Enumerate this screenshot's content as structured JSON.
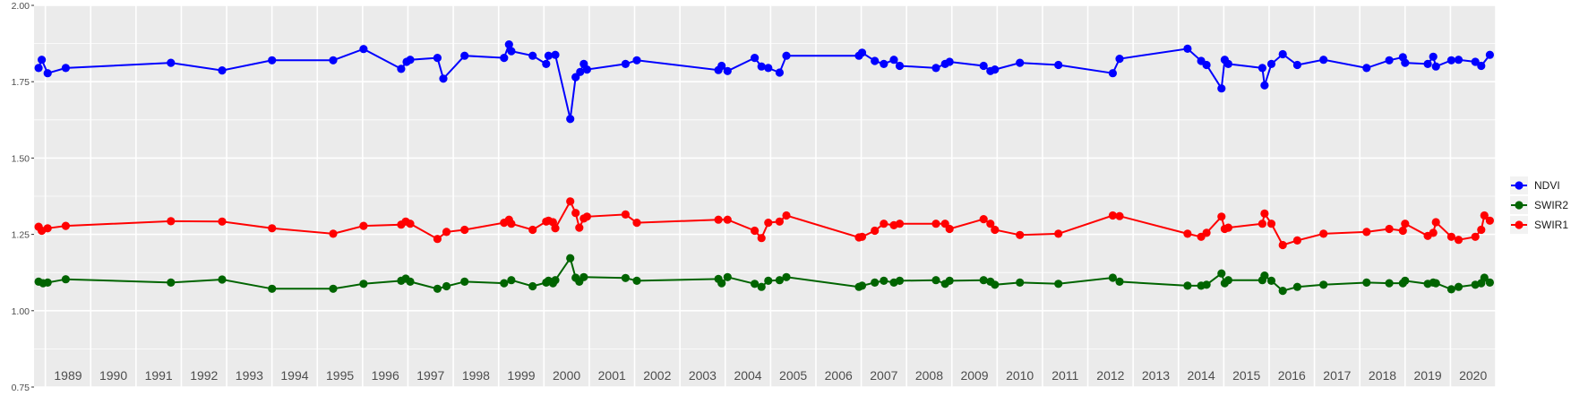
{
  "chart_data": {
    "type": "line",
    "title": "",
    "xlabel": "",
    "ylabel": "",
    "ylim": [
      0.75,
      2.0
    ],
    "xlim": [
      1988.75,
      2021.0
    ],
    "y_ticks": [
      "0.75",
      "1.00",
      "1.25",
      "1.50",
      "1.75",
      "2.00"
    ],
    "x_year_labels": [
      "1989",
      "1990",
      "1991",
      "1992",
      "1993",
      "1994",
      "1995",
      "1996",
      "1997",
      "1998",
      "1999",
      "2000",
      "2001",
      "2002",
      "2003",
      "2004",
      "2005",
      "2006",
      "2007",
      "2008",
      "2009",
      "2010",
      "2011",
      "2012",
      "2013",
      "2014",
      "2015",
      "2016",
      "2017",
      "2018",
      "2019",
      "2020"
    ],
    "grid": true,
    "legend_position": "right",
    "background": "#ebebeb",
    "series": [
      {
        "name": "NDVI",
        "color": "#0000ff",
        "points": [
          [
            1988.85,
            1.795
          ],
          [
            1988.92,
            1.822
          ],
          [
            1989.05,
            1.778
          ],
          [
            1989.45,
            1.795
          ],
          [
            1991.77,
            1.812
          ],
          [
            1992.9,
            1.787
          ],
          [
            1994.0,
            1.82
          ],
          [
            1995.35,
            1.82
          ],
          [
            1996.02,
            1.857
          ],
          [
            1996.85,
            1.792
          ],
          [
            1996.97,
            1.815
          ],
          [
            1997.05,
            1.822
          ],
          [
            1997.65,
            1.828
          ],
          [
            1997.78,
            1.76
          ],
          [
            1998.25,
            1.835
          ],
          [
            1999.12,
            1.828
          ],
          [
            1999.23,
            1.872
          ],
          [
            1999.28,
            1.85
          ],
          [
            1999.75,
            1.835
          ],
          [
            2000.05,
            1.808
          ],
          [
            2000.1,
            1.835
          ],
          [
            2000.25,
            1.838
          ],
          [
            2000.58,
            1.628
          ],
          [
            2000.7,
            1.765
          ],
          [
            2000.8,
            1.782
          ],
          [
            2000.88,
            1.808
          ],
          [
            2000.95,
            1.79
          ],
          [
            2001.8,
            1.808
          ],
          [
            2002.05,
            1.82
          ],
          [
            2003.85,
            1.788
          ],
          [
            2003.92,
            1.802
          ],
          [
            2004.05,
            1.785
          ],
          [
            2004.65,
            1.828
          ],
          [
            2004.8,
            1.8
          ],
          [
            2004.95,
            1.795
          ],
          [
            2005.2,
            1.78
          ],
          [
            2005.35,
            1.835
          ],
          [
            2006.95,
            1.835
          ],
          [
            2007.02,
            1.845
          ],
          [
            2007.3,
            1.818
          ],
          [
            2007.5,
            1.808
          ],
          [
            2007.72,
            1.822
          ],
          [
            2007.85,
            1.802
          ],
          [
            2008.65,
            1.795
          ],
          [
            2008.85,
            1.808
          ],
          [
            2008.95,
            1.815
          ],
          [
            2009.7,
            1.802
          ],
          [
            2009.85,
            1.785
          ],
          [
            2009.95,
            1.79
          ],
          [
            2010.5,
            1.812
          ],
          [
            2011.35,
            1.805
          ],
          [
            2012.55,
            1.778
          ],
          [
            2012.7,
            1.825
          ],
          [
            2014.2,
            1.858
          ],
          [
            2014.5,
            1.818
          ],
          [
            2014.62,
            1.805
          ],
          [
            2014.95,
            1.728
          ],
          [
            2015.02,
            1.822
          ],
          [
            2015.1,
            1.808
          ],
          [
            2015.85,
            1.795
          ],
          [
            2015.9,
            1.738
          ],
          [
            2016.05,
            1.808
          ],
          [
            2016.3,
            1.84
          ],
          [
            2016.62,
            1.805
          ],
          [
            2017.2,
            1.822
          ],
          [
            2018.15,
            1.795
          ],
          [
            2018.65,
            1.82
          ],
          [
            2018.95,
            1.83
          ],
          [
            2019.0,
            1.812
          ],
          [
            2019.5,
            1.808
          ],
          [
            2019.62,
            1.832
          ],
          [
            2019.68,
            1.8
          ],
          [
            2020.02,
            1.82
          ],
          [
            2020.18,
            1.822
          ],
          [
            2020.55,
            1.815
          ],
          [
            2020.68,
            1.802
          ],
          [
            2020.87,
            1.838
          ]
        ]
      },
      {
        "name": "SWIR2",
        "color": "#006400",
        "points": [
          [
            1988.85,
            1.095
          ],
          [
            1988.95,
            1.09
          ],
          [
            1989.05,
            1.092
          ],
          [
            1989.45,
            1.103
          ],
          [
            1991.77,
            1.092
          ],
          [
            1992.9,
            1.102
          ],
          [
            1994.0,
            1.072
          ],
          [
            1995.35,
            1.072
          ],
          [
            1996.02,
            1.088
          ],
          [
            1996.85,
            1.098
          ],
          [
            1996.95,
            1.105
          ],
          [
            1997.05,
            1.095
          ],
          [
            1997.65,
            1.072
          ],
          [
            1997.85,
            1.08
          ],
          [
            1998.25,
            1.095
          ],
          [
            1999.12,
            1.09
          ],
          [
            1999.28,
            1.1
          ],
          [
            1999.75,
            1.08
          ],
          [
            2000.05,
            1.092
          ],
          [
            2000.1,
            1.098
          ],
          [
            2000.2,
            1.09
          ],
          [
            2000.25,
            1.1
          ],
          [
            2000.58,
            1.172
          ],
          [
            2000.7,
            1.108
          ],
          [
            2000.78,
            1.095
          ],
          [
            2000.88,
            1.11
          ],
          [
            2001.8,
            1.107
          ],
          [
            2002.05,
            1.098
          ],
          [
            2003.85,
            1.104
          ],
          [
            2003.92,
            1.09
          ],
          [
            2004.05,
            1.11
          ],
          [
            2004.65,
            1.088
          ],
          [
            2004.8,
            1.078
          ],
          [
            2004.95,
            1.098
          ],
          [
            2005.2,
            1.1
          ],
          [
            2005.35,
            1.11
          ],
          [
            2006.95,
            1.078
          ],
          [
            2007.02,
            1.082
          ],
          [
            2007.3,
            1.092
          ],
          [
            2007.5,
            1.098
          ],
          [
            2007.72,
            1.092
          ],
          [
            2007.85,
            1.098
          ],
          [
            2008.65,
            1.1
          ],
          [
            2008.85,
            1.088
          ],
          [
            2008.95,
            1.098
          ],
          [
            2009.7,
            1.1
          ],
          [
            2009.85,
            1.095
          ],
          [
            2009.95,
            1.085
          ],
          [
            2010.5,
            1.092
          ],
          [
            2011.35,
            1.088
          ],
          [
            2012.55,
            1.108
          ],
          [
            2012.7,
            1.095
          ],
          [
            2014.2,
            1.082
          ],
          [
            2014.5,
            1.082
          ],
          [
            2014.62,
            1.085
          ],
          [
            2014.95,
            1.122
          ],
          [
            2015.02,
            1.09
          ],
          [
            2015.1,
            1.1
          ],
          [
            2015.85,
            1.1
          ],
          [
            2015.9,
            1.115
          ],
          [
            2016.05,
            1.098
          ],
          [
            2016.3,
            1.065
          ],
          [
            2016.62,
            1.078
          ],
          [
            2017.2,
            1.085
          ],
          [
            2018.15,
            1.092
          ],
          [
            2018.65,
            1.09
          ],
          [
            2018.95,
            1.09
          ],
          [
            2019.0,
            1.098
          ],
          [
            2019.5,
            1.088
          ],
          [
            2019.62,
            1.092
          ],
          [
            2019.68,
            1.09
          ],
          [
            2020.02,
            1.07
          ],
          [
            2020.18,
            1.078
          ],
          [
            2020.55,
            1.085
          ],
          [
            2020.68,
            1.09
          ],
          [
            2020.75,
            1.108
          ],
          [
            2020.87,
            1.092
          ]
        ]
      },
      {
        "name": "SWIR1",
        "color": "#ff0000",
        "points": [
          [
            1988.85,
            1.275
          ],
          [
            1988.92,
            1.262
          ],
          [
            1989.05,
            1.27
          ],
          [
            1989.45,
            1.278
          ],
          [
            1991.77,
            1.293
          ],
          [
            1992.9,
            1.292
          ],
          [
            1994.0,
            1.27
          ],
          [
            1995.35,
            1.252
          ],
          [
            1996.02,
            1.278
          ],
          [
            1996.85,
            1.282
          ],
          [
            1996.95,
            1.292
          ],
          [
            1997.05,
            1.285
          ],
          [
            1997.65,
            1.235
          ],
          [
            1997.85,
            1.258
          ],
          [
            1998.25,
            1.265
          ],
          [
            1999.12,
            1.288
          ],
          [
            1999.23,
            1.298
          ],
          [
            1999.28,
            1.285
          ],
          [
            1999.75,
            1.265
          ],
          [
            2000.05,
            1.292
          ],
          [
            2000.1,
            1.295
          ],
          [
            2000.2,
            1.29
          ],
          [
            2000.25,
            1.27
          ],
          [
            2000.58,
            1.358
          ],
          [
            2000.7,
            1.32
          ],
          [
            2000.78,
            1.272
          ],
          [
            2000.88,
            1.302
          ],
          [
            2000.95,
            1.308
          ],
          [
            2001.8,
            1.315
          ],
          [
            2002.05,
            1.288
          ],
          [
            2003.85,
            1.298
          ],
          [
            2004.05,
            1.298
          ],
          [
            2004.65,
            1.262
          ],
          [
            2004.8,
            1.238
          ],
          [
            2004.95,
            1.288
          ],
          [
            2005.2,
            1.292
          ],
          [
            2005.35,
            1.312
          ],
          [
            2006.95,
            1.24
          ],
          [
            2007.02,
            1.242
          ],
          [
            2007.3,
            1.262
          ],
          [
            2007.5,
            1.285
          ],
          [
            2007.72,
            1.28
          ],
          [
            2007.85,
            1.285
          ],
          [
            2008.65,
            1.285
          ],
          [
            2008.85,
            1.285
          ],
          [
            2008.95,
            1.268
          ],
          [
            2009.7,
            1.3
          ],
          [
            2009.85,
            1.285
          ],
          [
            2009.95,
            1.265
          ],
          [
            2010.5,
            1.248
          ],
          [
            2011.35,
            1.252
          ],
          [
            2012.55,
            1.312
          ],
          [
            2012.7,
            1.31
          ],
          [
            2014.2,
            1.252
          ],
          [
            2014.5,
            1.242
          ],
          [
            2014.62,
            1.255
          ],
          [
            2014.95,
            1.308
          ],
          [
            2015.02,
            1.268
          ],
          [
            2015.1,
            1.272
          ],
          [
            2015.85,
            1.285
          ],
          [
            2015.9,
            1.318
          ],
          [
            2016.05,
            1.285
          ],
          [
            2016.3,
            1.215
          ],
          [
            2016.62,
            1.23
          ],
          [
            2017.2,
            1.252
          ],
          [
            2018.15,
            1.258
          ],
          [
            2018.65,
            1.268
          ],
          [
            2018.95,
            1.262
          ],
          [
            2019.0,
            1.285
          ],
          [
            2019.5,
            1.245
          ],
          [
            2019.62,
            1.255
          ],
          [
            2019.68,
            1.29
          ],
          [
            2020.02,
            1.242
          ],
          [
            2020.18,
            1.232
          ],
          [
            2020.55,
            1.242
          ],
          [
            2020.68,
            1.265
          ],
          [
            2020.75,
            1.312
          ],
          [
            2020.87,
            1.295
          ]
        ]
      }
    ]
  }
}
